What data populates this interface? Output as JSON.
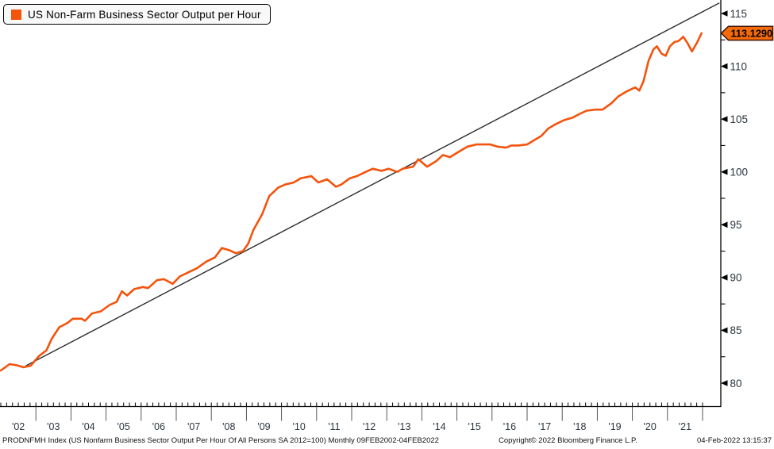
{
  "legend": {
    "label": "US Non-Farm Business Sector Output per Hour"
  },
  "last_value_label": "113.1290",
  "colors": {
    "series": "#f4530c",
    "trend": "#2f2f2f",
    "axis": "#000000",
    "tick_text": "#2a3540",
    "last_value_bg": "#f56a0b",
    "last_value_border": "#401000",
    "legend_bg": "#f8f8f8"
  },
  "footer": {
    "left": "PRODNFMH Index (US Nonfarm Business Sector Output Per Hour Of All Persons SA 2012=100)  Monthly 09FEB2002-04FEB2022",
    "center": "Copyright© 2022 Bloomberg Finance L.P.",
    "right": "04-Feb-2022 13:15:37"
  },
  "chart_data": {
    "type": "line",
    "title": "US Non-Farm Business Sector Output per Hour",
    "grid": false,
    "legend_position": "top-left",
    "last_value": 113.129,
    "y_axis": {
      "ticks": [
        80,
        85,
        90,
        95,
        100,
        105,
        110,
        115
      ],
      "minor_ticks": [
        82.5,
        87.5,
        92.5,
        97.5,
        102.5,
        107.5,
        112.5
      ],
      "side": "right"
    },
    "x_axis": {
      "tick_labels": [
        "'02",
        "'03",
        "'04",
        "'05",
        "'06",
        "'07",
        "'08",
        "'09",
        "'10",
        "'11",
        "'12",
        "'13",
        "'14",
        "'15",
        "'16",
        "'17",
        "'18",
        "'19",
        "'20",
        "'21"
      ],
      "start_year": 2002,
      "minor_ticks_per_year": 6,
      "range_note": "Monthly 09FEB2002-04FEB2022"
    },
    "series": [
      {
        "name": "US Non-Farm Business Sector Output per Hour",
        "color": "#f4530c",
        "x": [
          2002.0,
          2002.25,
          2002.45,
          2002.65,
          2002.85,
          2003.1,
          2003.3,
          2003.45,
          2003.67,
          2003.9,
          2004.05,
          2004.3,
          2004.4,
          2004.6,
          2004.85,
          2005.1,
          2005.3,
          2005.45,
          2005.6,
          2005.8,
          2006.05,
          2006.2,
          2006.45,
          2006.65,
          2006.9,
          2007.1,
          2007.35,
          2007.6,
          2007.85,
          2008.1,
          2008.3,
          2008.5,
          2008.7,
          2008.9,
          2009.05,
          2009.2,
          2009.45,
          2009.65,
          2009.9,
          2010.1,
          2010.35,
          2010.55,
          2010.85,
          2011.05,
          2011.3,
          2011.55,
          2011.7,
          2011.95,
          2012.15,
          2012.4,
          2012.6,
          2012.85,
          2013.05,
          2013.3,
          2013.45,
          2013.75,
          2013.9,
          2014.15,
          2014.4,
          2014.6,
          2014.8,
          2015.05,
          2015.3,
          2015.55,
          2015.95,
          2016.15,
          2016.4,
          2016.55,
          2016.75,
          2017.0,
          2017.2,
          2017.4,
          2017.6,
          2017.8,
          2018.05,
          2018.3,
          2018.5,
          2018.7,
          2018.95,
          2019.15,
          2019.4,
          2019.6,
          2019.85,
          2020.08,
          2020.2,
          2020.32,
          2020.46,
          2020.6,
          2020.7,
          2020.83,
          2020.95,
          2021.07,
          2021.2,
          2021.32,
          2021.45,
          2021.57,
          2021.7,
          2021.85,
          2021.97
        ],
        "values": [
          81.2,
          81.8,
          81.7,
          81.5,
          81.65,
          82.6,
          83.1,
          84.2,
          85.3,
          85.7,
          86.1,
          86.1,
          85.9,
          86.6,
          86.8,
          87.4,
          87.7,
          88.7,
          88.3,
          88.9,
          89.1,
          89.0,
          89.75,
          89.85,
          89.4,
          90.1,
          90.5,
          90.9,
          91.5,
          91.9,
          92.8,
          92.6,
          92.3,
          92.5,
          93.2,
          94.5,
          96.0,
          97.7,
          98.5,
          98.8,
          99.0,
          99.4,
          99.6,
          99.0,
          99.3,
          98.6,
          98.8,
          99.4,
          99.6,
          100.0,
          100.3,
          100.1,
          100.3,
          100.0,
          100.3,
          100.5,
          101.2,
          100.5,
          101.0,
          101.6,
          101.4,
          101.9,
          102.4,
          102.6,
          102.6,
          102.4,
          102.3,
          102.5,
          102.5,
          102.6,
          103.0,
          103.4,
          104.1,
          104.5,
          104.9,
          105.15,
          105.5,
          105.8,
          105.9,
          105.9,
          106.5,
          107.15,
          107.65,
          108.0,
          107.7,
          108.6,
          110.5,
          111.6,
          111.9,
          111.2,
          111.0,
          111.9,
          112.3,
          112.4,
          112.8,
          112.2,
          111.4,
          112.3,
          113.129
        ]
      },
      {
        "name": "Trend line",
        "color": "#2f2f2f",
        "x": [
          2002.72,
          2022.48
        ],
        "values": [
          81.65,
          116.0
        ]
      }
    ]
  }
}
